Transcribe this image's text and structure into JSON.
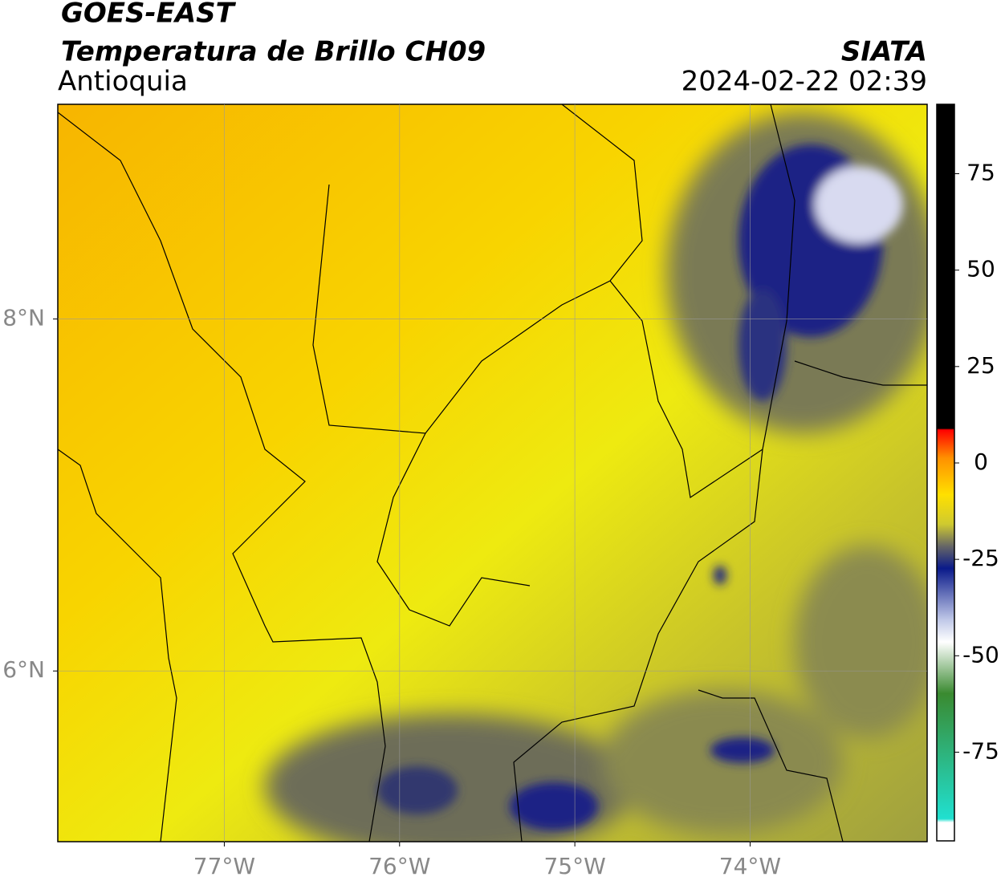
{
  "header": {
    "title": "GOES-EAST",
    "subtitle": "Temperatura de Brillo CH09",
    "region": "Antioquia",
    "source": "SIATA",
    "datetime": "2024-02-22 02:39"
  },
  "map": {
    "xlim": [
      -77.95,
      -72.99
    ],
    "ylim": [
      5.03,
      9.22
    ],
    "xticks": [
      {
        "value": -77,
        "label": "77°W"
      },
      {
        "value": -76,
        "label": "76°W"
      },
      {
        "value": -75,
        "label": "75°W"
      },
      {
        "value": -74,
        "label": "74°W"
      }
    ],
    "yticks": [
      {
        "value": 6,
        "label": "6°N"
      },
      {
        "value": 8,
        "label": "8°N"
      }
    ],
    "grid": true
  },
  "colorbar": {
    "ylim": [
      -98,
      93
    ],
    "yticks": [
      75,
      50,
      25,
      0,
      -25,
      -50,
      -75
    ]
  }
}
